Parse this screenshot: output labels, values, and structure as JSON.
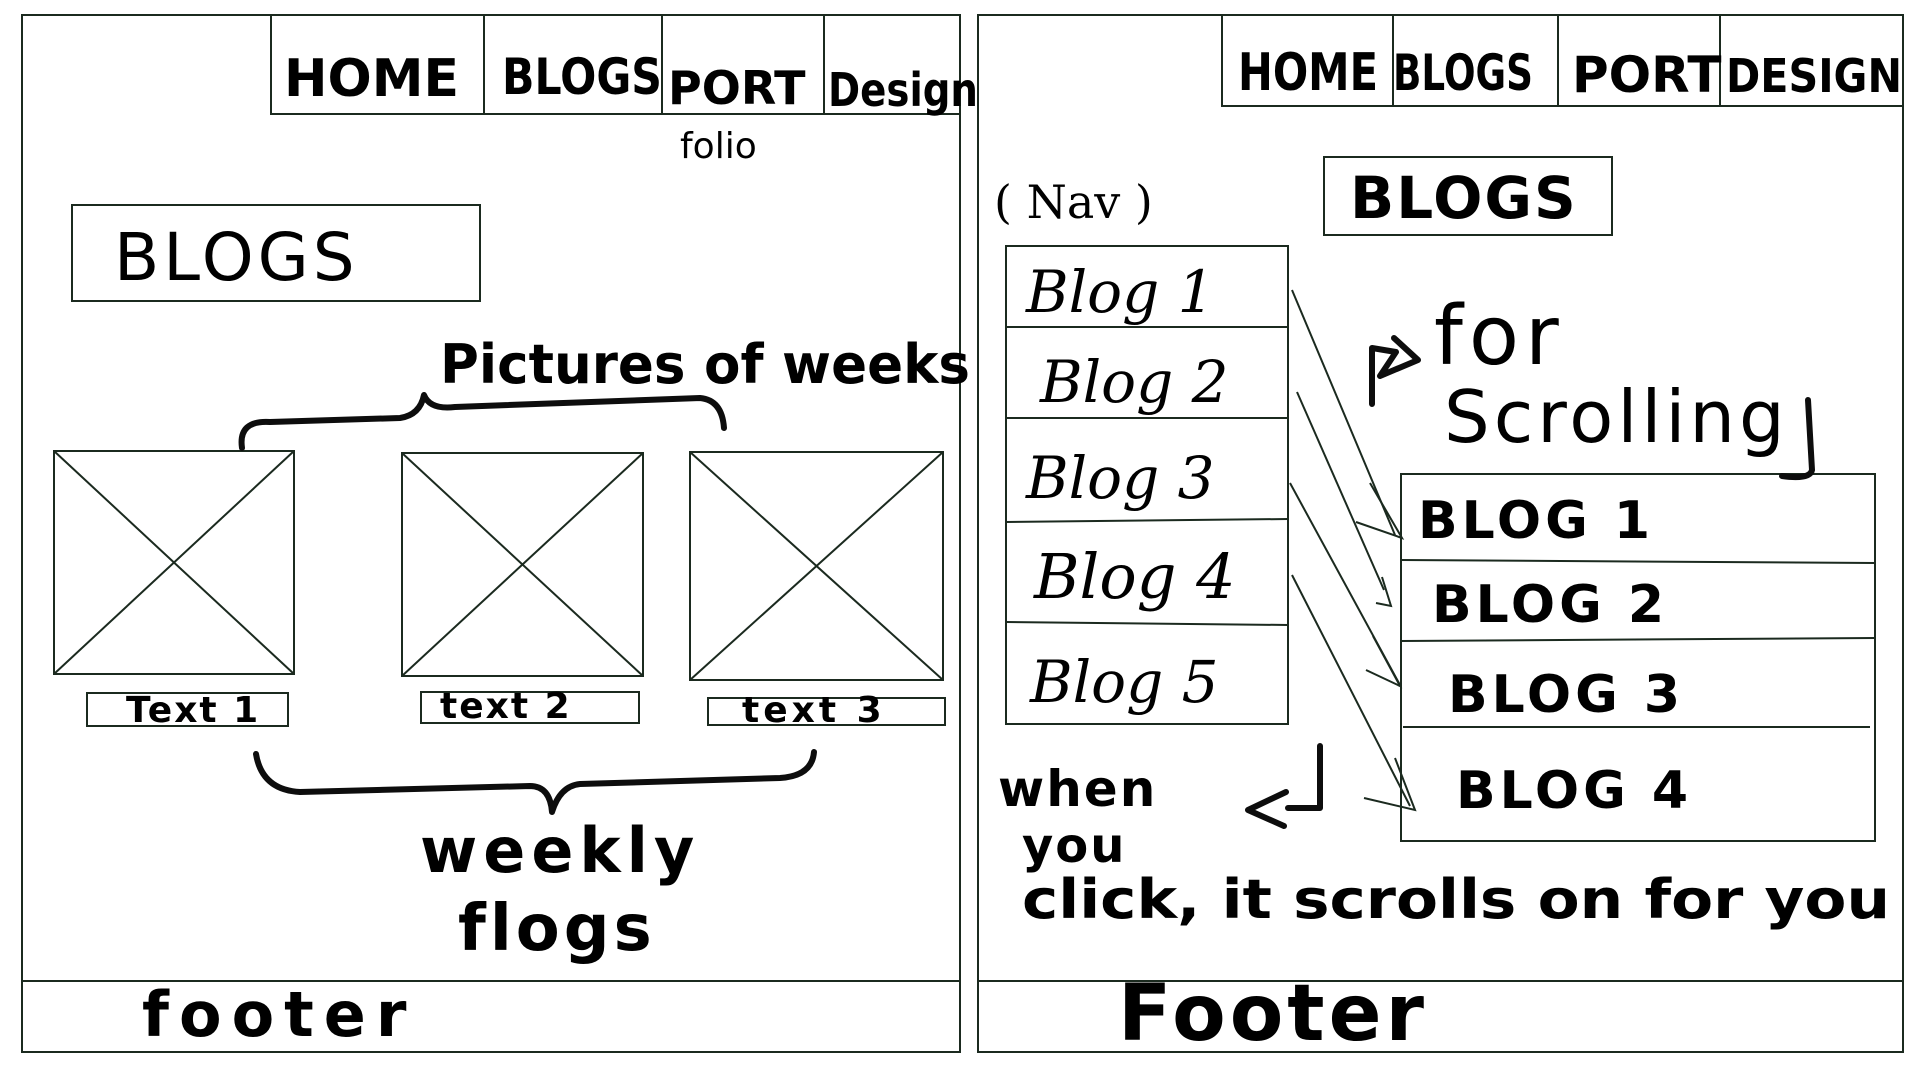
{
  "left_panel": {
    "nav": {
      "items": [
        "HOME",
        "BLOGS",
        "PORT",
        "Design"
      ],
      "portfolio_suffix": "folio"
    },
    "header_title": "BLOGS",
    "annotation_top": "Pictures of weeks",
    "cards": [
      {
        "caption": "Text 1"
      },
      {
        "caption": "text 2"
      },
      {
        "caption": "text 3"
      }
    ],
    "annotation_bottom_line1": "weekly",
    "annotation_bottom_line2": "flogs",
    "footer": "footer"
  },
  "right_panel": {
    "nav": {
      "items": [
        "HOME",
        "BLOGS",
        "PORT",
        "DESIGN"
      ]
    },
    "header_title": "BLOGS",
    "nav_note": "( Nav )",
    "sidebar_items": [
      "Blog 1",
      "Blog 2",
      "Blog 3",
      "Blog 4",
      "Blog 5"
    ],
    "scroll_note_line1": "for",
    "scroll_note_line2": "Scrolling",
    "content_items": [
      "BLOG 1",
      "BLOG 2",
      "BLOG 3",
      "BLOG 4"
    ],
    "click_note_line1": "when",
    "click_note_line2": "you",
    "click_note_line3": "click, it scrolls on for you",
    "footer": "Footer"
  },
  "colors": {
    "stroke": "#1b2a1f",
    "ink": "#0d0d0d",
    "paper": "#ffffff"
  }
}
